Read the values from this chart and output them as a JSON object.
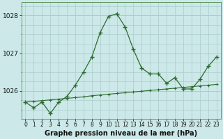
{
  "title": "Graphe pression niveau de la mer (hPa)",
  "background_color": "#cce8e8",
  "grid_color": "#aacccc",
  "line_color": "#2d6a2d",
  "x_labels": [
    "0",
    "1",
    "2",
    "3",
    "4",
    "5",
    "6",
    "7",
    "8",
    "9",
    "10",
    "11",
    "12",
    "13",
    "14",
    "15",
    "16",
    "17",
    "18",
    "19",
    "20",
    "21",
    "22",
    "23"
  ],
  "ylim": [
    1025.25,
    1028.35
  ],
  "yticks": [
    1026,
    1027,
    1028
  ],
  "series1": [
    1025.7,
    1025.55,
    1025.7,
    1025.4,
    1025.7,
    1025.85,
    1026.15,
    1026.5,
    1026.9,
    1027.55,
    1027.98,
    1028.05,
    1027.7,
    1027.1,
    1026.6,
    1026.45,
    1026.45,
    1026.2,
    1026.35,
    1026.05,
    1026.05,
    1026.3,
    1026.65,
    1026.9
  ],
  "series2": [
    1025.7,
    1025.72,
    1025.74,
    1025.76,
    1025.78,
    1025.8,
    1025.82,
    1025.84,
    1025.87,
    1025.89,
    1025.91,
    1025.93,
    1025.95,
    1025.97,
    1025.99,
    1026.01,
    1026.03,
    1026.05,
    1026.07,
    1026.09,
    1026.11,
    1026.13,
    1026.15,
    1026.17
  ],
  "title_fontsize": 7,
  "xlabel_fontsize": 5.5,
  "ylabel_fontsize": 6.5
}
